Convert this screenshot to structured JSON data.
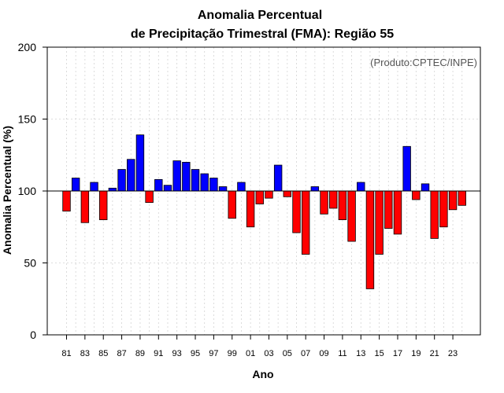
{
  "chart_data": {
    "type": "bar",
    "title": [
      "Anomalia Percentual",
      "de Precipitação Trimestral (FMA): Região 55"
    ],
    "source": "(Produto:CPTEC/INPE)",
    "xlabel": "Ano",
    "ylabel": "Anomalia Percentual (%)",
    "ylim": [
      0,
      200
    ],
    "yticks": [
      0,
      50,
      100,
      150,
      200
    ],
    "baseline": 100,
    "grid": true,
    "colors": {
      "above": "#0000ff",
      "below": "#ff0000",
      "outline": "#000000"
    },
    "years": [
      1981,
      1982,
      1983,
      1984,
      1985,
      1986,
      1987,
      1988,
      1989,
      1990,
      1991,
      1992,
      1993,
      1994,
      1995,
      1996,
      1997,
      1998,
      1999,
      2000,
      2001,
      2002,
      2003,
      2004,
      2005,
      2006,
      2007,
      2008,
      2009,
      2010,
      2011,
      2012,
      2013,
      2014,
      2015,
      2016,
      2017,
      2018,
      2019,
      2020,
      2021,
      2022,
      2023,
      2024
    ],
    "tick_labels": [
      "81",
      "83",
      "85",
      "87",
      "89",
      "91",
      "93",
      "95",
      "97",
      "99",
      "01",
      "03",
      "05",
      "07",
      "09",
      "11",
      "13",
      "15",
      "17",
      "19",
      "21",
      "23"
    ],
    "values": [
      86,
      109,
      78,
      106,
      80,
      102,
      115,
      122,
      139,
      92,
      108,
      104,
      121,
      120,
      115,
      112,
      109,
      103,
      81,
      106,
      75,
      91,
      95,
      118,
      96,
      71,
      56,
      103,
      84,
      88,
      80,
      65,
      106,
      32,
      56,
      74,
      70,
      131,
      94,
      105,
      67,
      75,
      87,
      90
    ]
  }
}
